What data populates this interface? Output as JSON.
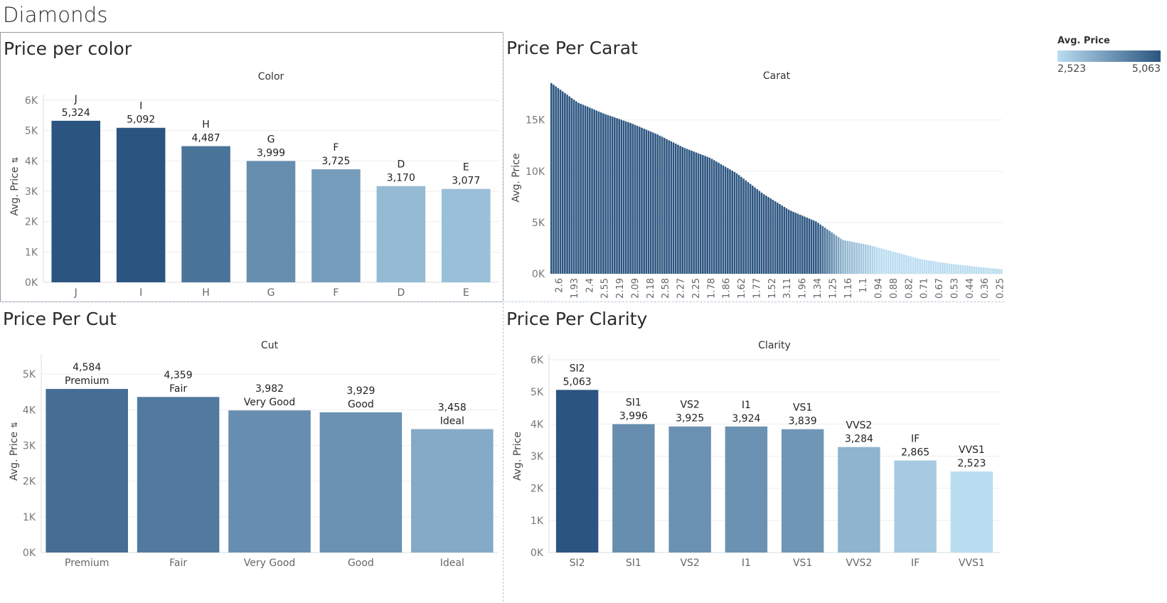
{
  "dashboard": {
    "title": "Diamonds"
  },
  "legend": {
    "title": "Avg. Price",
    "min_label": "2,523",
    "max_label": "5,063",
    "color_min": "#b9dcf0",
    "color_max": "#2b5580"
  },
  "charts": {
    "color": {
      "panel_title": "Price per color",
      "chart_data": {
        "type": "bar",
        "header": "Color",
        "ylabel": "Avg. Price",
        "ylim": [
          0,
          6000
        ],
        "yticks": [
          0,
          1000,
          2000,
          3000,
          4000,
          5000,
          6000
        ],
        "ytick_labels": [
          "0K",
          "1K",
          "2K",
          "3K",
          "4K",
          "5K",
          "6K"
        ],
        "categories": [
          "J",
          "I",
          "H",
          "G",
          "F",
          "D",
          "E"
        ],
        "values": [
          5324,
          5092,
          4487,
          3999,
          3725,
          3170,
          3077
        ],
        "value_labels": [
          "5,324",
          "5,092",
          "4,487",
          "3,999",
          "3,725",
          "3,170",
          "3,077"
        ],
        "label_order": "name_then_value",
        "sorted_icon": true
      }
    },
    "carat": {
      "panel_title": "Price Per Carat",
      "chart_data": {
        "type": "bar",
        "header": "Carat",
        "ylabel": "Avg. Price",
        "ylim": [
          0,
          19000
        ],
        "yticks": [
          0,
          5000,
          10000,
          15000
        ],
        "ytick_labels": [
          "0K",
          "5K",
          "10K",
          "15K"
        ],
        "bar_count": 200,
        "profile_values": [
          18600,
          16700,
          15600,
          14700,
          13600,
          12300,
          11300,
          9800,
          7800,
          6200,
          5100,
          3300,
          2800,
          2100,
          1400,
          1000,
          700,
          450
        ],
        "tick_labels": [
          "2.6",
          "1.93",
          "2.4",
          "2.55",
          "2.19",
          "2.09",
          "2.18",
          "2.58",
          "2.27",
          "2.25",
          "1.78",
          "1.86",
          "1.62",
          "1.77",
          "1.52",
          "3.11",
          "1.96",
          "1.34",
          "1.25",
          "1.16",
          "1.1",
          "0.94",
          "0.88",
          "0.82",
          "0.71",
          "0.67",
          "0.53",
          "0.44",
          "0.36",
          "0.25"
        ]
      }
    },
    "cut": {
      "panel_title": "Price Per Cut",
      "chart_data": {
        "type": "bar",
        "header": "Cut",
        "ylabel": "Avg. Price",
        "ylim": [
          0,
          5400
        ],
        "yticks": [
          0,
          1000,
          2000,
          3000,
          4000,
          5000
        ],
        "ytick_labels": [
          "0K",
          "1K",
          "2K",
          "3K",
          "4K",
          "5K"
        ],
        "categories": [
          "Premium",
          "Fair",
          "Very Good",
          "Good",
          "Ideal"
        ],
        "values": [
          4584,
          4359,
          3982,
          3929,
          3458
        ],
        "value_labels": [
          "4,584",
          "4,359",
          "3,982",
          "3,929",
          "3,458"
        ],
        "label_order": "value_then_name",
        "sorted_icon": true
      }
    },
    "clarity": {
      "panel_title": "Price Per Clarity",
      "chart_data": {
        "type": "bar",
        "header": "Clarity",
        "ylabel": "Avg. Price",
        "ylim": [
          0,
          6000
        ],
        "yticks": [
          0,
          1000,
          2000,
          3000,
          4000,
          5000,
          6000
        ],
        "ytick_labels": [
          "0K",
          "1K",
          "2K",
          "3K",
          "4K",
          "5K",
          "6K"
        ],
        "categories": [
          "SI2",
          "SI1",
          "VS2",
          "I1",
          "VS1",
          "VVS2",
          "IF",
          "VVS1"
        ],
        "values": [
          5063,
          3996,
          3925,
          3924,
          3839,
          3284,
          2865,
          2523
        ],
        "value_labels": [
          "5,063",
          "3,996",
          "3,925",
          "3,924",
          "3,839",
          "3,284",
          "2,865",
          "2,523"
        ],
        "label_order": "name_then_value",
        "sorted_icon": false
      }
    }
  }
}
